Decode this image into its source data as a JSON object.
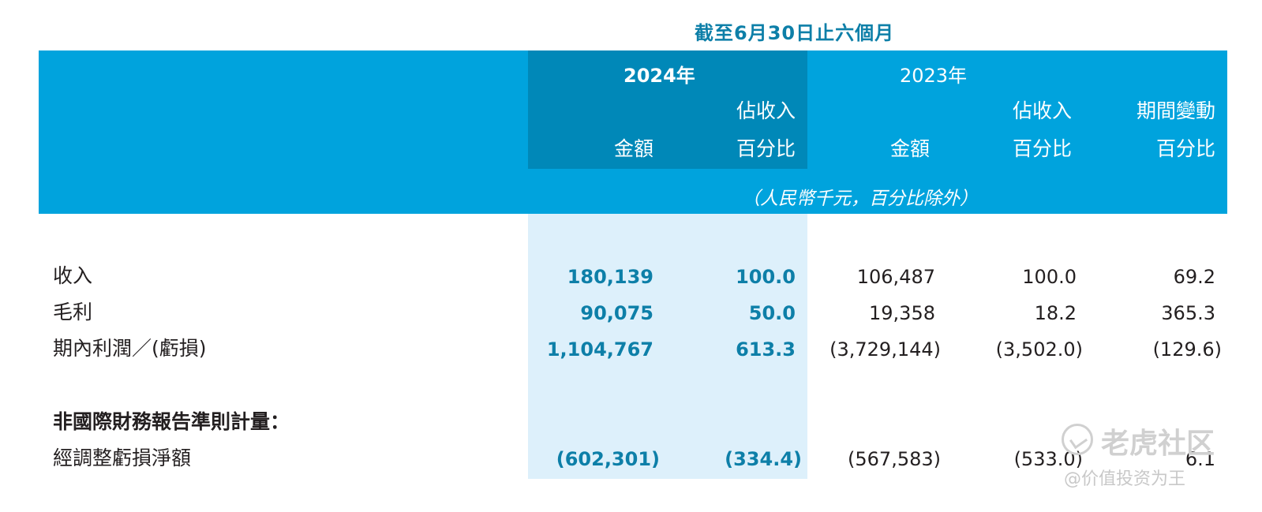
{
  "table": {
    "period_title": "截至6月30日止六個月",
    "year_2024": "2024年",
    "year_2023": "2023年",
    "col_amount": "金額",
    "col_pct_line1": "佔收入",
    "col_pct_line2": "百分比",
    "col_change_line1": "期間變動",
    "col_change_line2": "百分比",
    "unit_note": "（人民幣千元，百分比除外）",
    "rows": [
      {
        "label": "收入",
        "amt_2024": "180,139",
        "pct_2024": "100.0",
        "amt_2023": "106,487",
        "pct_2023": "100.0",
        "change": "69.2"
      },
      {
        "label": "毛利",
        "amt_2024": "90,075",
        "pct_2024": "50.0",
        "amt_2023": "19,358",
        "pct_2023": "18.2",
        "change": "365.3"
      },
      {
        "label": "期內利潤／(虧損)",
        "amt_2024": "1,104,767",
        "pct_2024": "613.3",
        "amt_2023": "(3,729,144)",
        "pct_2023": "(3,502.0)",
        "change": "(129.6)"
      }
    ],
    "section_title": "非國際財務報告準則計量：",
    "section_rows": [
      {
        "label": "經調整虧損淨額",
        "amt_2024": "(602,301)",
        "pct_2024": "(334.4)",
        "amt_2023": "(567,583)",
        "pct_2023": "(533.0)",
        "change": "6.1"
      }
    ]
  },
  "watermark": {
    "brand": "老虎社区",
    "user": "@价值投资为王",
    "logo_icon": "tiger-community-logo-icon"
  },
  "colors": {
    "header_band": "#00a3dd",
    "header_2024": "#0088b8",
    "body_2024": "#ddf0fb",
    "accent_text": "#0d7fa8"
  }
}
